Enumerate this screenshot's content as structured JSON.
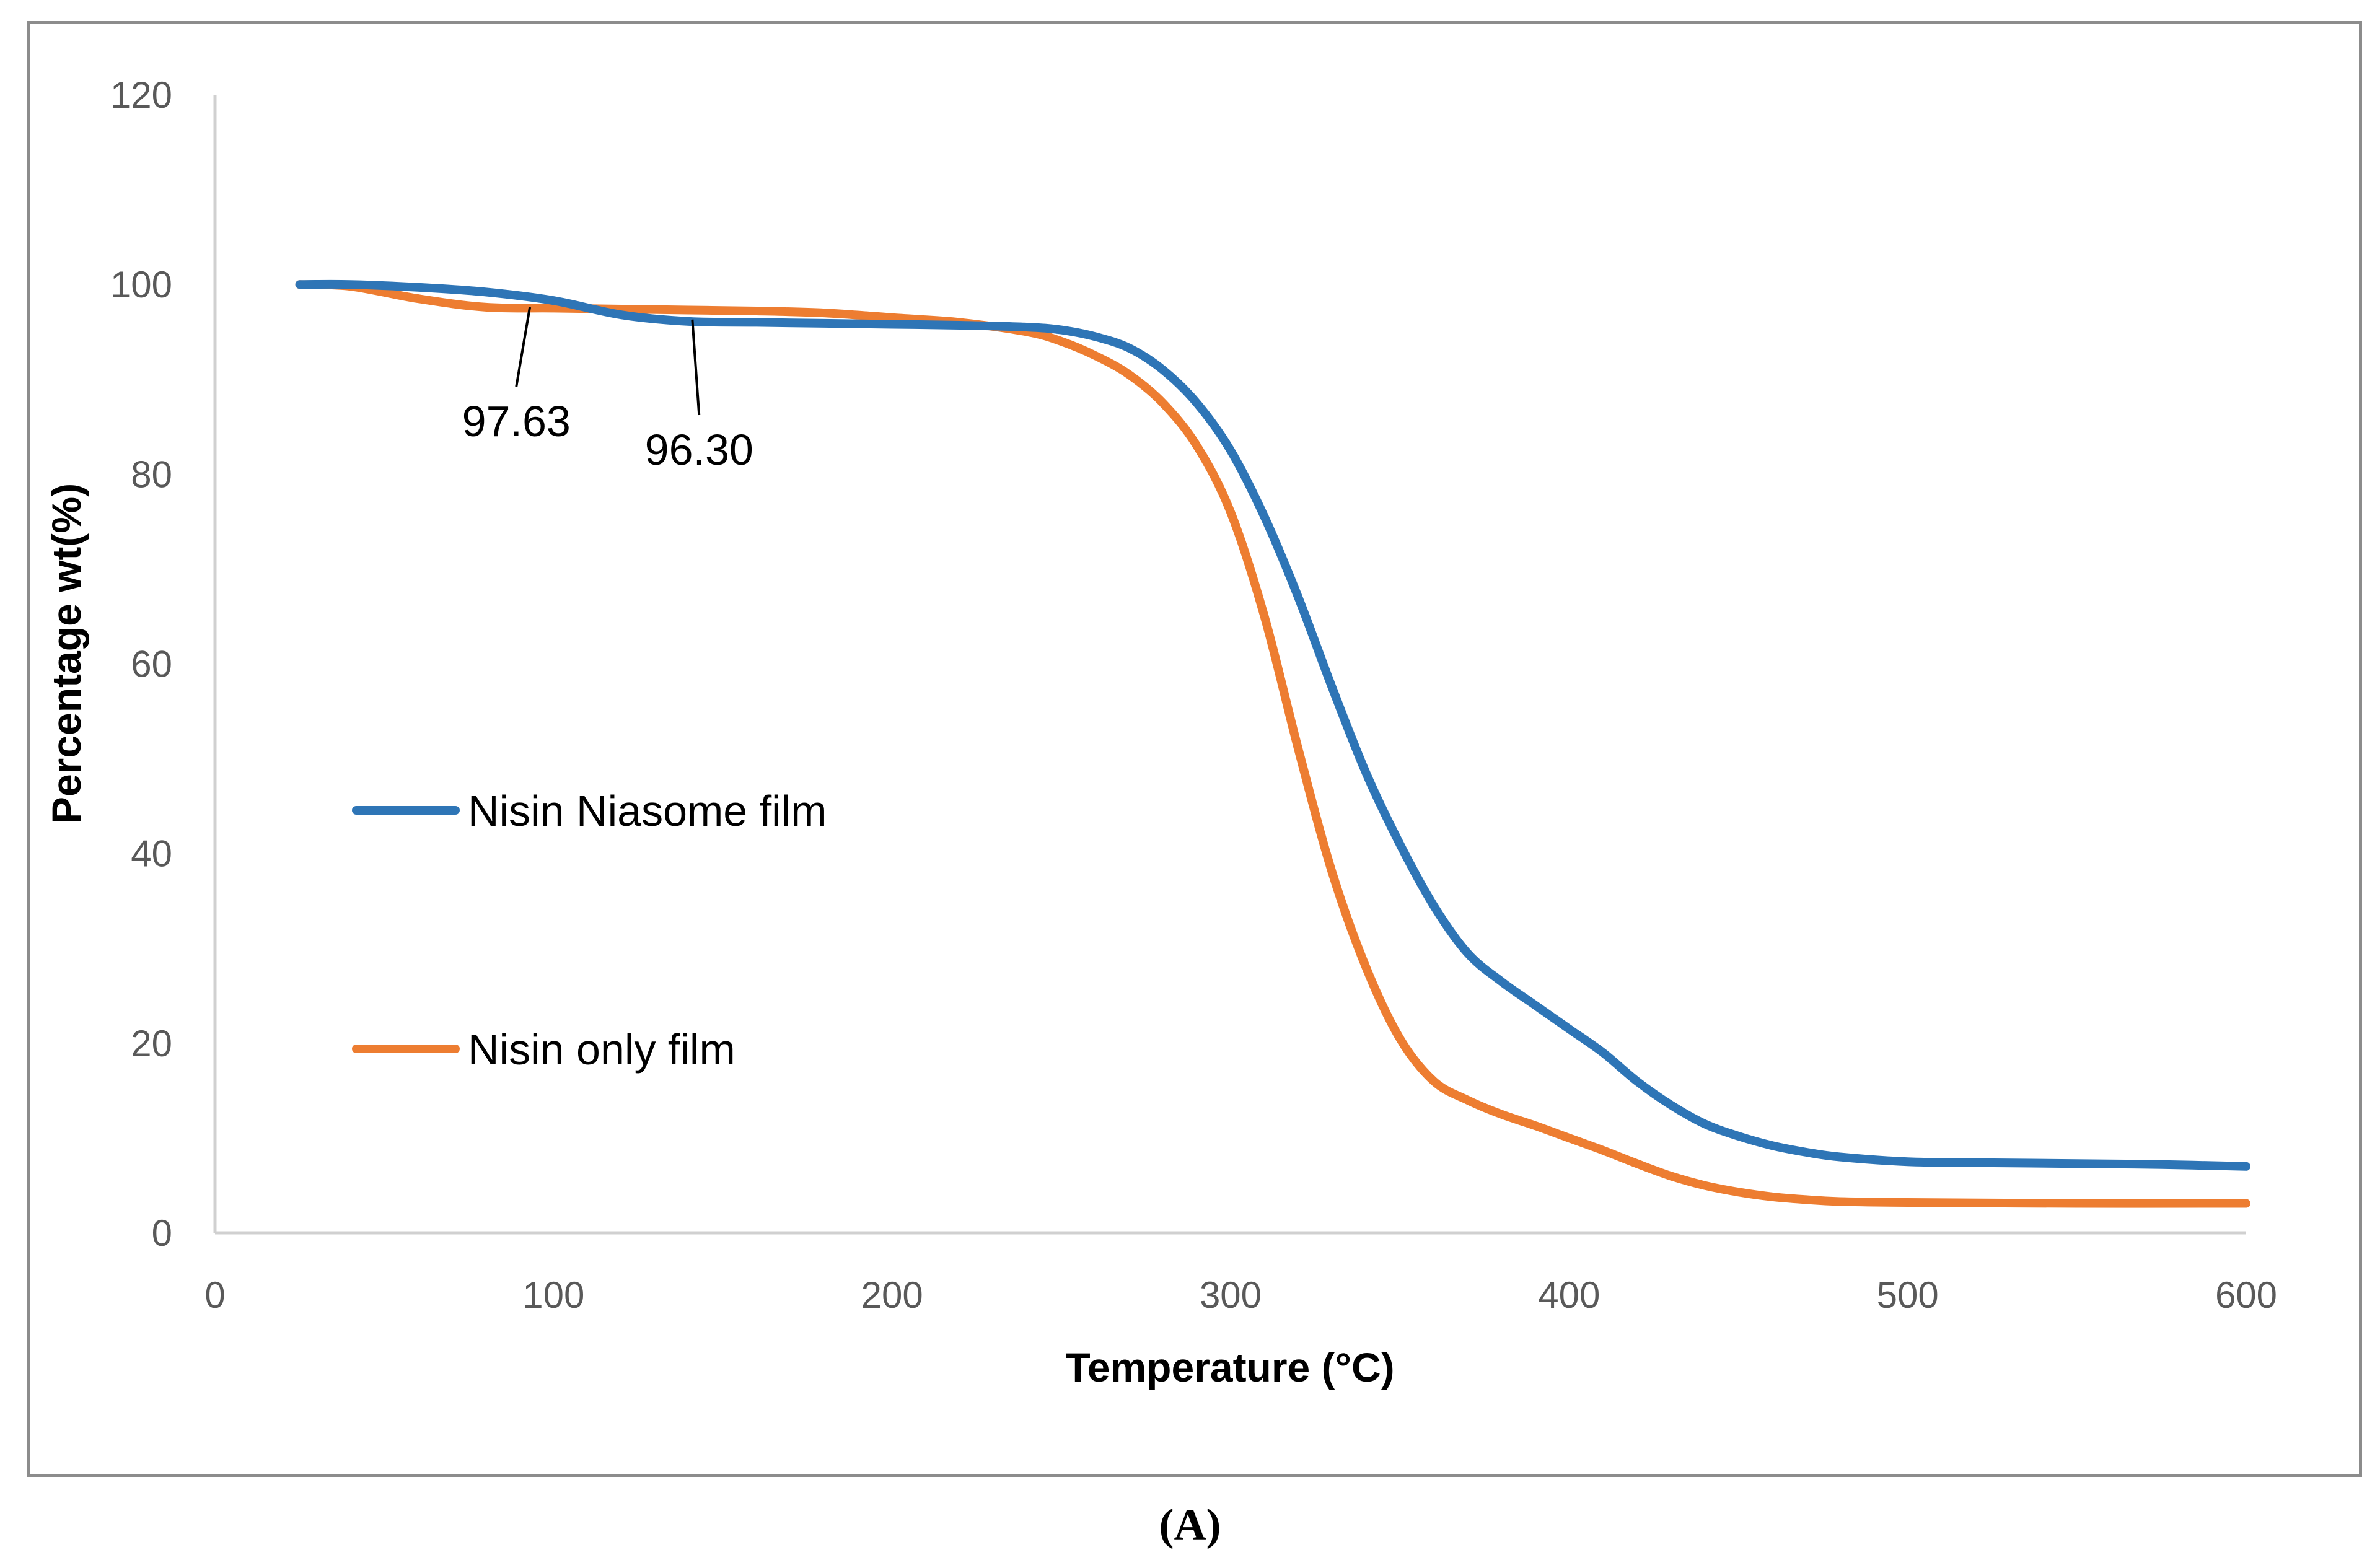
{
  "chart_data": {
    "type": "line",
    "xlabel": "Temperature (°C)",
    "ylabel": "Percentage wt(%)",
    "xlim": [
      0,
      600
    ],
    "ylim": [
      0,
      120
    ],
    "xticks": [
      0,
      100,
      200,
      300,
      400,
      500,
      600
    ],
    "yticks": [
      0,
      20,
      40,
      60,
      80,
      100,
      120
    ],
    "grid": false,
    "legend_position": "center-left",
    "series": [
      {
        "name": "Nisin Niasome film",
        "color": "#2E75B6",
        "x": [
          25,
          40,
          60,
          80,
          100,
          120,
          140,
          160,
          180,
          200,
          220,
          240,
          250,
          260,
          270,
          280,
          290,
          300,
          310,
          320,
          330,
          340,
          350,
          360,
          370,
          380,
          390,
          400,
          410,
          420,
          430,
          440,
          450,
          460,
          470,
          480,
          500,
          520,
          550,
          575,
          600
        ],
        "values": [
          100,
          100,
          99.7,
          99.2,
          98.3,
          96.8,
          96.1,
          96.0,
          95.9,
          95.8,
          95.7,
          95.5,
          95.2,
          94.5,
          93.3,
          91.0,
          87.5,
          82.5,
          75.5,
          67.0,
          57.5,
          48.5,
          41.0,
          34.5,
          29.5,
          26.5,
          24.0,
          21.5,
          19.0,
          16.0,
          13.5,
          11.5,
          10.2,
          9.2,
          8.5,
          8.0,
          7.5,
          7.4,
          7.3,
          7.2,
          7.0
        ]
      },
      {
        "name": "Nisin only film",
        "color": "#ED7D31",
        "x": [
          25,
          40,
          60,
          80,
          100,
          120,
          140,
          160,
          180,
          200,
          220,
          240,
          250,
          260,
          270,
          280,
          290,
          300,
          310,
          320,
          330,
          340,
          350,
          360,
          370,
          380,
          390,
          400,
          410,
          420,
          430,
          440,
          450,
          460,
          470,
          480,
          500,
          550,
          600
        ],
        "values": [
          100,
          99.8,
          98.5,
          97.6,
          97.5,
          97.4,
          97.3,
          97.2,
          97.0,
          96.5,
          96.0,
          95.0,
          94.0,
          92.5,
          90.5,
          87.5,
          83.0,
          76.0,
          65.0,
          51.0,
          38.0,
          28.0,
          20.5,
          16.0,
          14.0,
          12.5,
          11.3,
          10.0,
          8.7,
          7.3,
          6.0,
          5.0,
          4.3,
          3.8,
          3.5,
          3.3,
          3.2,
          3.1,
          3.1
        ]
      }
    ],
    "annotations": [
      {
        "text": "97.63",
        "point": [
          93,
          97.6
        ],
        "label_at": [
          89,
          84
        ]
      },
      {
        "text": "96.30",
        "point": [
          141,
          96.3
        ],
        "label_at": [
          143,
          81
        ]
      }
    ],
    "caption": "(A)"
  }
}
